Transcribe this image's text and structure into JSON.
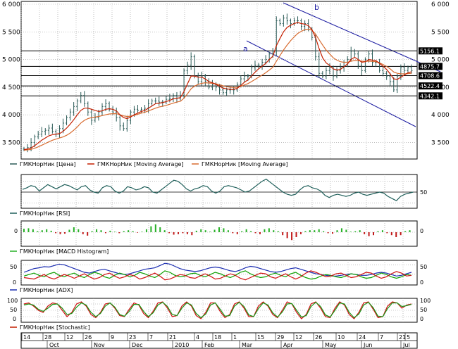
{
  "colors": {
    "price": "#2b5b57",
    "ma_fast": "#c41f00",
    "ma_slow": "#d86b2f",
    "channel": "#1a1aa0",
    "grid": "#9a9a9a",
    "rsi": "#1f5f5a",
    "macd_pos": "#27b027",
    "macd_neg": "#c01818",
    "adx": "#1a2cb0",
    "plus_di": "#0ea000",
    "minus_di": "#d01010",
    "stoch_k": "#d01010",
    "stoch_d": "#189818",
    "label_bg": "#000000",
    "label_fg": "#ffffff"
  },
  "chart_data": [
    {
      "type": "line",
      "panel": "price",
      "ylim": [
        3200,
        6000
      ],
      "y_ticks": [
        "6 000",
        "5 500",
        "5 000",
        "4 500",
        "4 000",
        "3 500"
      ],
      "y_tick_values": [
        6000,
        5500,
        5000,
        4500,
        4000,
        3500
      ],
      "price_labels": [
        "5156.1",
        "4875.7",
        "4708.6",
        "4522.4",
        "4342.1"
      ],
      "price_label_values": [
        5156.1,
        4875.7,
        4708.6,
        4522.4,
        4342.1
      ],
      "annotations": [
        "a",
        "b"
      ],
      "legend": [
        "ГМКНорНик [Цена]",
        "ГМКНорНик [Moving Average]",
        "ГМКНорНик [Moving Average]"
      ],
      "close": [
        3380,
        3410,
        3500,
        3600,
        3650,
        3700,
        3720,
        3760,
        3700,
        3650,
        3750,
        3850,
        3950,
        4050,
        4150,
        4250,
        4350,
        4200,
        4050,
        3900,
        3950,
        4050,
        4150,
        4200,
        4100,
        4050,
        3950,
        3800,
        3750,
        3900,
        4050,
        4100,
        4080,
        4100,
        4120,
        4200,
        4250,
        4250,
        4230,
        4230,
        4280,
        4300,
        4350,
        4300,
        4350,
        4800,
        4900,
        5050,
        4700,
        4600,
        4700,
        4600,
        4500,
        4550,
        4500,
        4450,
        4400,
        4450,
        4450,
        4450,
        4550,
        4650,
        4700,
        4700,
        4850,
        4900,
        4900,
        4950,
        5000,
        5100,
        5150,
        5700,
        5650,
        5750,
        5700,
        5650,
        5700,
        5700,
        5600,
        5650,
        5550,
        5400,
        5050,
        4750,
        4700,
        4800,
        4850,
        4700,
        4800,
        4850,
        4950,
        5000,
        5150,
        5100,
        4900,
        4800,
        5000,
        5100,
        4950,
        4950,
        4800,
        4750,
        4700,
        4600,
        4450,
        4700,
        4850,
        4800,
        4850,
        4800
      ],
      "ma_fast": [
        3370,
        3380,
        3400,
        3440,
        3490,
        3540,
        3580,
        3620,
        3640,
        3650,
        3660,
        3700,
        3760,
        3830,
        3910,
        4000,
        4080,
        4120,
        4120,
        4100,
        4080,
        4060,
        4070,
        4100,
        4110,
        4100,
        4070,
        4000,
        3950,
        3930,
        3960,
        4000,
        4030,
        4060,
        4080,
        4120,
        4160,
        4200,
        4210,
        4220,
        4240,
        4260,
        4290,
        4300,
        4310,
        4420,
        4560,
        4700,
        4700,
        4680,
        4680,
        4650,
        4600,
        4580,
        4550,
        4520,
        4480,
        4470,
        4460,
        4460,
        4480,
        4530,
        4590,
        4630,
        4700,
        4770,
        4830,
        4880,
        4930,
        5000,
        5060,
        5250,
        5380,
        5500,
        5580,
        5620,
        5650,
        5670,
        5650,
        5640,
        5610,
        5540,
        5400,
        5200,
        5030,
        4940,
        4890,
        4830,
        4810,
        4820,
        4870,
        4920,
        5000,
        5040,
        5000,
        4950,
        4960,
        5000,
        4990,
        4980,
        4930,
        4880,
        4820,
        4740,
        4650,
        4640,
        4680,
        4720,
        4760,
        4780
      ],
      "ma_slow": [
        3360,
        3365,
        3375,
        3395,
        3420,
        3450,
        3480,
        3510,
        3540,
        3560,
        3580,
        3600,
        3630,
        3670,
        3720,
        3780,
        3850,
        3900,
        3930,
        3950,
        3960,
        3970,
        3985,
        4000,
        4015,
        4020,
        4020,
        4000,
        3980,
        3970,
        3975,
        3990,
        4010,
        4030,
        4045,
        4070,
        4095,
        4120,
        4140,
        4155,
        4170,
        4190,
        4210,
        4230,
        4245,
        4300,
        4380,
        4470,
        4520,
        4550,
        4570,
        4580,
        4575,
        4570,
        4560,
        4545,
        4525,
        4510,
        4500,
        4495,
        4500,
        4515,
        4540,
        4565,
        4600,
        4640,
        4680,
        4720,
        4760,
        4810,
        4860,
        4970,
        5070,
        5170,
        5260,
        5340,
        5410,
        5470,
        5510,
        5540,
        5550,
        5530,
        5460,
        5360,
        5260,
        5170,
        5100,
        5030,
        4990,
        4960,
        4950,
        4950,
        4970,
        4980,
        4980,
        4970,
        4965,
        4970,
        4965,
        4960,
        4940,
        4910,
        4875,
        4830,
        4775,
        4750,
        4740,
        4740,
        4745,
        4750
      ]
    },
    {
      "type": "line",
      "panel": "rsi",
      "ylim": [
        20,
        80
      ],
      "y_ticks": [
        "50"
      ],
      "legend": [
        "ГМКНорНик [RSI]"
      ],
      "values": [
        55,
        58,
        62,
        60,
        52,
        58,
        64,
        60,
        56,
        60,
        64,
        62,
        58,
        54,
        60,
        62,
        54,
        50,
        48,
        58,
        62,
        60,
        52,
        48,
        52,
        60,
        58,
        54,
        56,
        60,
        58,
        50,
        48,
        54,
        60,
        66,
        72,
        70,
        64,
        56,
        52,
        56,
        58,
        62,
        60,
        52,
        48,
        52,
        60,
        62,
        60,
        58,
        54,
        50,
        52,
        58,
        64,
        70,
        74,
        68,
        62,
        56,
        50,
        46,
        44,
        46,
        54,
        60,
        62,
        58,
        56,
        52,
        44,
        40,
        44,
        46,
        44,
        42,
        44,
        48,
        50,
        46,
        44,
        46,
        48,
        50,
        48,
        42,
        38,
        34,
        42,
        46,
        48,
        50
      ]
    },
    {
      "type": "bar",
      "panel": "macd_histogram",
      "ylim": [
        -1,
        1
      ],
      "y_ticks": [
        "0"
      ],
      "legend": [
        "ГМКНорНик [MACD Histogram]"
      ],
      "values": [
        0.35,
        0.4,
        0.3,
        0.1,
        0.2,
        0.3,
        0.15,
        -0.1,
        -0.2,
        -0.15,
        0.25,
        0.5,
        0.3,
        -0.2,
        -0.35,
        0.1,
        0.3,
        0.2,
        -0.1,
        0.15,
        0.05,
        -0.1,
        0.1,
        0.2,
        0.1,
        -0.05,
        0.05,
        0.3,
        0.6,
        0.8,
        0.5,
        0.2,
        -0.1,
        -0.25,
        -0.2,
        -0.1,
        -0.2,
        -0.3,
        0.15,
        0.3,
        0.2,
        0.05,
        0.25,
        0.5,
        0.4,
        0.2,
        -0.1,
        -0.2,
        0.1,
        0.3,
        0.1,
        -0.1,
        -0.2,
        0.3,
        0.4,
        0.2,
        0.1,
        -0.3,
        -0.6,
        -0.8,
        -0.5,
        -0.2,
        0.1,
        0.2,
        0.2,
        0.3,
        0.1,
        -0.1,
        -0.15,
        0.2,
        0.4,
        0.25,
        0.05,
        0.1,
        0.2,
        -0.2,
        -0.4,
        -0.3,
        0.1,
        0.2,
        -0.1,
        -0.3,
        -0.5,
        -0.3,
        0.1,
        0.2
      ]
    },
    {
      "type": "line",
      "panel": "adx",
      "ylim": [
        0,
        60
      ],
      "y_ticks": [
        "50",
        "0"
      ],
      "legend": [
        "ГМКНорНик [ADX]"
      ],
      "series": [
        {
          "key": "adx",
          "values": [
            30,
            35,
            40,
            42,
            45,
            44,
            48,
            52,
            50,
            45,
            40,
            35,
            30,
            28,
            32,
            36,
            38,
            34,
            30,
            26,
            24,
            26,
            30,
            34,
            38,
            40,
            42,
            48,
            54,
            52,
            46,
            40,
            36,
            34,
            32,
            34,
            38,
            42,
            44,
            42,
            38,
            34,
            32,
            36,
            42,
            46,
            44,
            40,
            36,
            32,
            30,
            32,
            36,
            40,
            42,
            38,
            34,
            30,
            26,
            24,
            22,
            20,
            20,
            22,
            24,
            26,
            24,
            22,
            22,
            24,
            28,
            30,
            28,
            24,
            20,
            22,
            26,
            30
          ]
        },
        {
          "key": "plus_di",
          "values": [
            20,
            24,
            28,
            22,
            18,
            26,
            30,
            22,
            18,
            24,
            28,
            20,
            16,
            24,
            30,
            26,
            18,
            14,
            22,
            28,
            24,
            18,
            22,
            30,
            26,
            20,
            16,
            24,
            34,
            30,
            22,
            18,
            20,
            26,
            28,
            22,
            18,
            24,
            30,
            26,
            20,
            16,
            22,
            30,
            34,
            26,
            20,
            16,
            18,
            24,
            28,
            22,
            18,
            26,
            30,
            22,
            16,
            12,
            14,
            20,
            24,
            22,
            18,
            16,
            20,
            26,
            24,
            18,
            14,
            16,
            22,
            28,
            24,
            18,
            14,
            18,
            24,
            22
          ]
        },
        {
          "key": "minus_di",
          "values": [
            16,
            14,
            12,
            18,
            24,
            16,
            12,
            18,
            24,
            20,
            14,
            20,
            26,
            18,
            12,
            16,
            24,
            28,
            20,
            14,
            18,
            24,
            20,
            12,
            16,
            22,
            28,
            20,
            10,
            12,
            18,
            24,
            22,
            16,
            14,
            20,
            26,
            20,
            12,
            14,
            20,
            26,
            22,
            14,
            10,
            16,
            22,
            28,
            26,
            18,
            14,
            20,
            26,
            18,
            12,
            18,
            28,
            34,
            30,
            24,
            18,
            20,
            26,
            28,
            22,
            16,
            18,
            24,
            30,
            28,
            20,
            14,
            18,
            26,
            32,
            28,
            20,
            22
          ]
        }
      ]
    },
    {
      "type": "line",
      "panel": "stochastic",
      "ylim": [
        0,
        100
      ],
      "y_ticks": [
        "100",
        "50",
        "0"
      ],
      "legend": [
        "ГМКНорНик [Stochastic]"
      ],
      "series": [
        {
          "key": "stoch_k",
          "values": [
            80,
            85,
            70,
            50,
            40,
            70,
            85,
            80,
            50,
            20,
            40,
            80,
            90,
            70,
            30,
            15,
            40,
            80,
            85,
            60,
            25,
            20,
            55,
            85,
            75,
            35,
            15,
            45,
            85,
            90,
            60,
            20,
            25,
            70,
            90,
            70,
            25,
            10,
            40,
            85,
            85,
            45,
            15,
            30,
            80,
            90,
            60,
            20,
            20,
            70,
            90,
            70,
            30,
            15,
            50,
            90,
            80,
            40,
            10,
            30,
            80,
            90,
            60,
            20,
            15,
            60,
            90,
            75,
            30,
            10,
            40,
            85,
            90,
            55,
            15,
            20,
            70,
            90,
            85,
            60,
            75,
            80
          ]
        },
        {
          "key": "stoch_d",
          "values": [
            75,
            80,
            75,
            55,
            45,
            60,
            78,
            80,
            60,
            30,
            35,
            65,
            85,
            75,
            40,
            20,
            35,
            70,
            85,
            65,
            30,
            22,
            45,
            78,
            78,
            45,
            20,
            38,
            75,
            88,
            68,
            30,
            25,
            60,
            85,
            75,
            35,
            15,
            32,
            75,
            85,
            55,
            22,
            25,
            70,
            88,
            68,
            28,
            20,
            58,
            85,
            75,
            38,
            18,
            42,
            80,
            82,
            50,
            18,
            25,
            68,
            88,
            68,
            28,
            18,
            50,
            85,
            80,
            40,
            15,
            32,
            75,
            88,
            62,
            22,
            20,
            58,
            85,
            85,
            68,
            72,
            78
          ]
        }
      ]
    }
  ],
  "x_axis": {
    "day_ticks": [
      "14",
      "28",
      "12",
      "26",
      "9",
      "23",
      "7",
      "21",
      "4",
      "18",
      "1",
      "15",
      "29",
      "12",
      "26",
      "10",
      "24",
      "7",
      "21",
      "5"
    ],
    "month_labels": [
      "Oct",
      "Nov",
      "Dec",
      "2010",
      "Feb",
      "Mar",
      "Apr",
      "May",
      "Jun",
      "Jul"
    ]
  }
}
